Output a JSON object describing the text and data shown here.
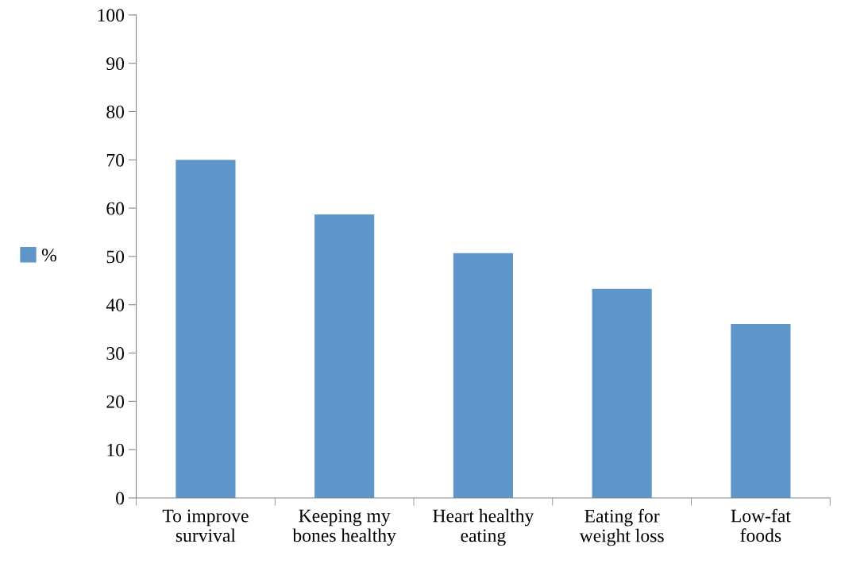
{
  "chart_data": {
    "type": "bar",
    "categories": [
      "To improve\nsurvival",
      "Keeping my\nbones healthy",
      "Heart healthy\neating",
      "Eating for\nweight loss",
      "Low-fat\nfoods"
    ],
    "series": [
      {
        "name": "%",
        "color": "#5f96c9",
        "values": [
          70,
          58.7,
          50.7,
          43.3,
          36
        ]
      }
    ],
    "ylim": [
      0,
      100
    ],
    "yticks": [
      0,
      10,
      20,
      30,
      40,
      50,
      60,
      70,
      80,
      90,
      100
    ],
    "grid": false,
    "legend": "left"
  }
}
